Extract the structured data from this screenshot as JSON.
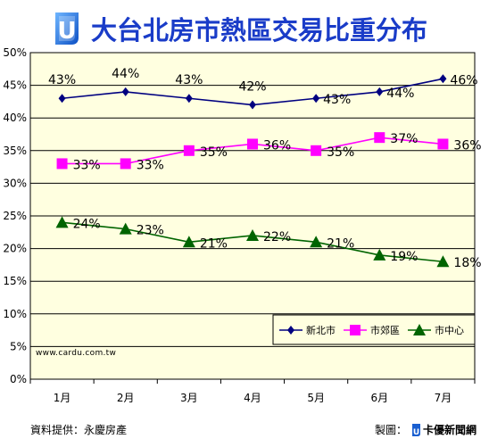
{
  "header": {
    "logo_letter": "U",
    "title": "大台北房市熱區交易比重分布",
    "title_color": "#1a3cc8"
  },
  "footer": {
    "source": "資料提供：永慶房產",
    "credit_label": "製圖：",
    "credit_brand": "卡優新聞網",
    "watermark": "www.cardu.com.tw"
  },
  "colors": {
    "plot_background": "#ffffe0",
    "frame": "#000000",
    "grid": "#000000"
  },
  "chart_data": {
    "type": "line",
    "title": "大台北房市熱區交易比重分布",
    "categories": [
      "1月",
      "2月",
      "3月",
      "4月",
      "5月",
      "6月",
      "7月"
    ],
    "ylim": [
      0,
      50
    ],
    "yticks": [
      "0%",
      "5%",
      "10%",
      "15%",
      "20%",
      "25%",
      "30%",
      "35%",
      "40%",
      "45%",
      "50%"
    ],
    "grid": true,
    "legend_position": "bottom-right",
    "series": [
      {
        "name": "新北市",
        "values": [
          43,
          44,
          43,
          42,
          43,
          44,
          46
        ],
        "labels": [
          "43%",
          "44%",
          "43%",
          "42%",
          "43%",
          "44%",
          "46%"
        ],
        "color": "#000080",
        "marker": "diamond"
      },
      {
        "name": "市郊區",
        "values": [
          33,
          33,
          35,
          36,
          35,
          37,
          36
        ],
        "labels": [
          "33%",
          "33%",
          "35%",
          "36%",
          "35%",
          "37%",
          "36%"
        ],
        "color": "#ff00ff",
        "marker": "square"
      },
      {
        "name": "市中心",
        "values": [
          24,
          23,
          21,
          22,
          21,
          19,
          18
        ],
        "labels": [
          "24%",
          "23%",
          "21%",
          "22%",
          "21%",
          "19%",
          "18%"
        ],
        "color": "#006400",
        "marker": "triangle"
      }
    ]
  }
}
